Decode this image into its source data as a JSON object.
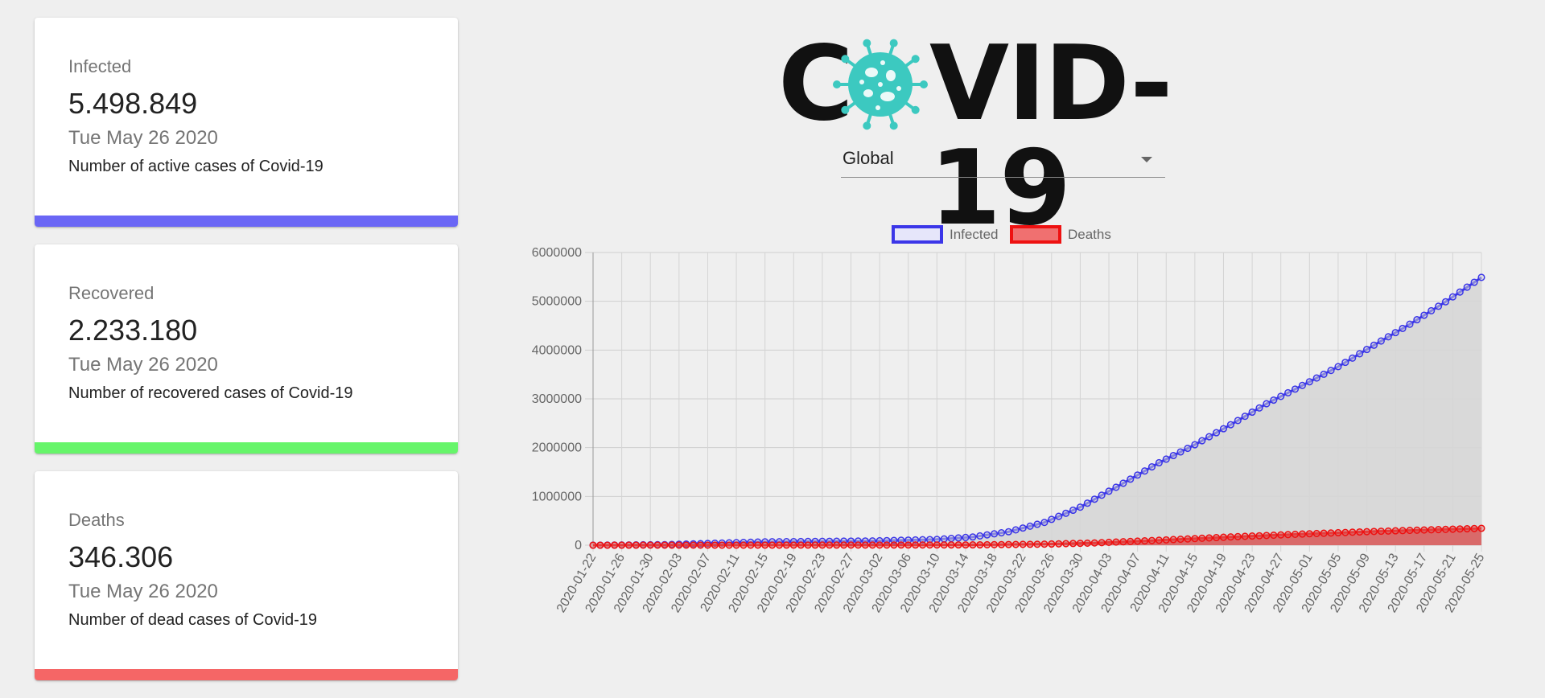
{
  "cards": [
    {
      "title": "Infected",
      "value": "5.498.849",
      "date": "Tue May 26 2020",
      "description": "Number of active cases of Covid-19",
      "color": "#6a66f5"
    },
    {
      "title": "Recovered",
      "value": "2.233.180",
      "date": "Tue May 26 2020",
      "description": "Number of recovered cases of Covid-19",
      "color": "#66f56a"
    },
    {
      "title": "Deaths",
      "value": "346.306",
      "date": "Tue May 26 2020",
      "description": "Number of dead cases of Covid-19",
      "color": "#f56666"
    }
  ],
  "logo": {
    "text_left": "C",
    "text_right": "VID-19",
    "icon": "virus-icon",
    "icon_color": "#3cc9c0"
  },
  "country_select": {
    "value": "Global"
  },
  "chart_data": {
    "type": "area",
    "legend_position": "top",
    "grid": true,
    "ylim": [
      0,
      6000000
    ],
    "yticks": [
      0,
      1000000,
      2000000,
      3000000,
      4000000,
      5000000,
      6000000
    ],
    "x_start": "2020-01-22",
    "x_end": "2020-05-25",
    "x_tick_labels": [
      "2020-01-22",
      "2020-01-26",
      "2020-01-30",
      "2020-02-03",
      "2020-02-07",
      "2020-02-11",
      "2020-02-15",
      "2020-02-19",
      "2020-02-23",
      "2020-02-27",
      "2020-03-02",
      "2020-03-06",
      "2020-03-10",
      "2020-03-14",
      "2020-03-18",
      "2020-03-22",
      "2020-03-26",
      "2020-03-30",
      "2020-04-03",
      "2020-04-07",
      "2020-04-11",
      "2020-04-15",
      "2020-04-19",
      "2020-04-23",
      "2020-04-27",
      "2020-05-01",
      "2020-05-05",
      "2020-05-09",
      "2020-05-13",
      "2020-05-17",
      "2020-05-21",
      "2020-05-25"
    ],
    "series": [
      {
        "name": "Infected",
        "color": "#3b36e8",
        "fill": "#d6d6d6",
        "key_points": [
          [
            "2020-01-22",
            555
          ],
          [
            "2020-02-01",
            12000
          ],
          [
            "2020-02-15",
            69000
          ],
          [
            "2020-03-01",
            88000
          ],
          [
            "2020-03-10",
            119000
          ],
          [
            "2020-03-15",
            169000
          ],
          [
            "2020-03-20",
            276000
          ],
          [
            "2020-03-25",
            467000
          ],
          [
            "2020-03-30",
            780000
          ],
          [
            "2020-04-05",
            1270000
          ],
          [
            "2020-04-10",
            1690000
          ],
          [
            "2020-04-15",
            2060000
          ],
          [
            "2020-04-20",
            2470000
          ],
          [
            "2020-04-25",
            2900000
          ],
          [
            "2020-05-01",
            3350000
          ],
          [
            "2020-05-05",
            3660000
          ],
          [
            "2020-05-10",
            4100000
          ],
          [
            "2020-05-15",
            4530000
          ],
          [
            "2020-05-20",
            4990000
          ],
          [
            "2020-05-25",
            5490000
          ]
        ]
      },
      {
        "name": "Deaths",
        "color": "#ee1111",
        "fill": "#d96a6a",
        "key_points": [
          [
            "2020-01-22",
            17
          ],
          [
            "2020-02-15",
            1660
          ],
          [
            "2020-03-01",
            2990
          ],
          [
            "2020-03-15",
            6500
          ],
          [
            "2020-03-25",
            21500
          ],
          [
            "2020-04-01",
            46000
          ],
          [
            "2020-04-10",
            102000
          ],
          [
            "2020-04-20",
            170000
          ],
          [
            "2020-05-01",
            235000
          ],
          [
            "2020-05-10",
            282000
          ],
          [
            "2020-05-20",
            325000
          ],
          [
            "2020-05-25",
            346000
          ]
        ]
      }
    ]
  }
}
